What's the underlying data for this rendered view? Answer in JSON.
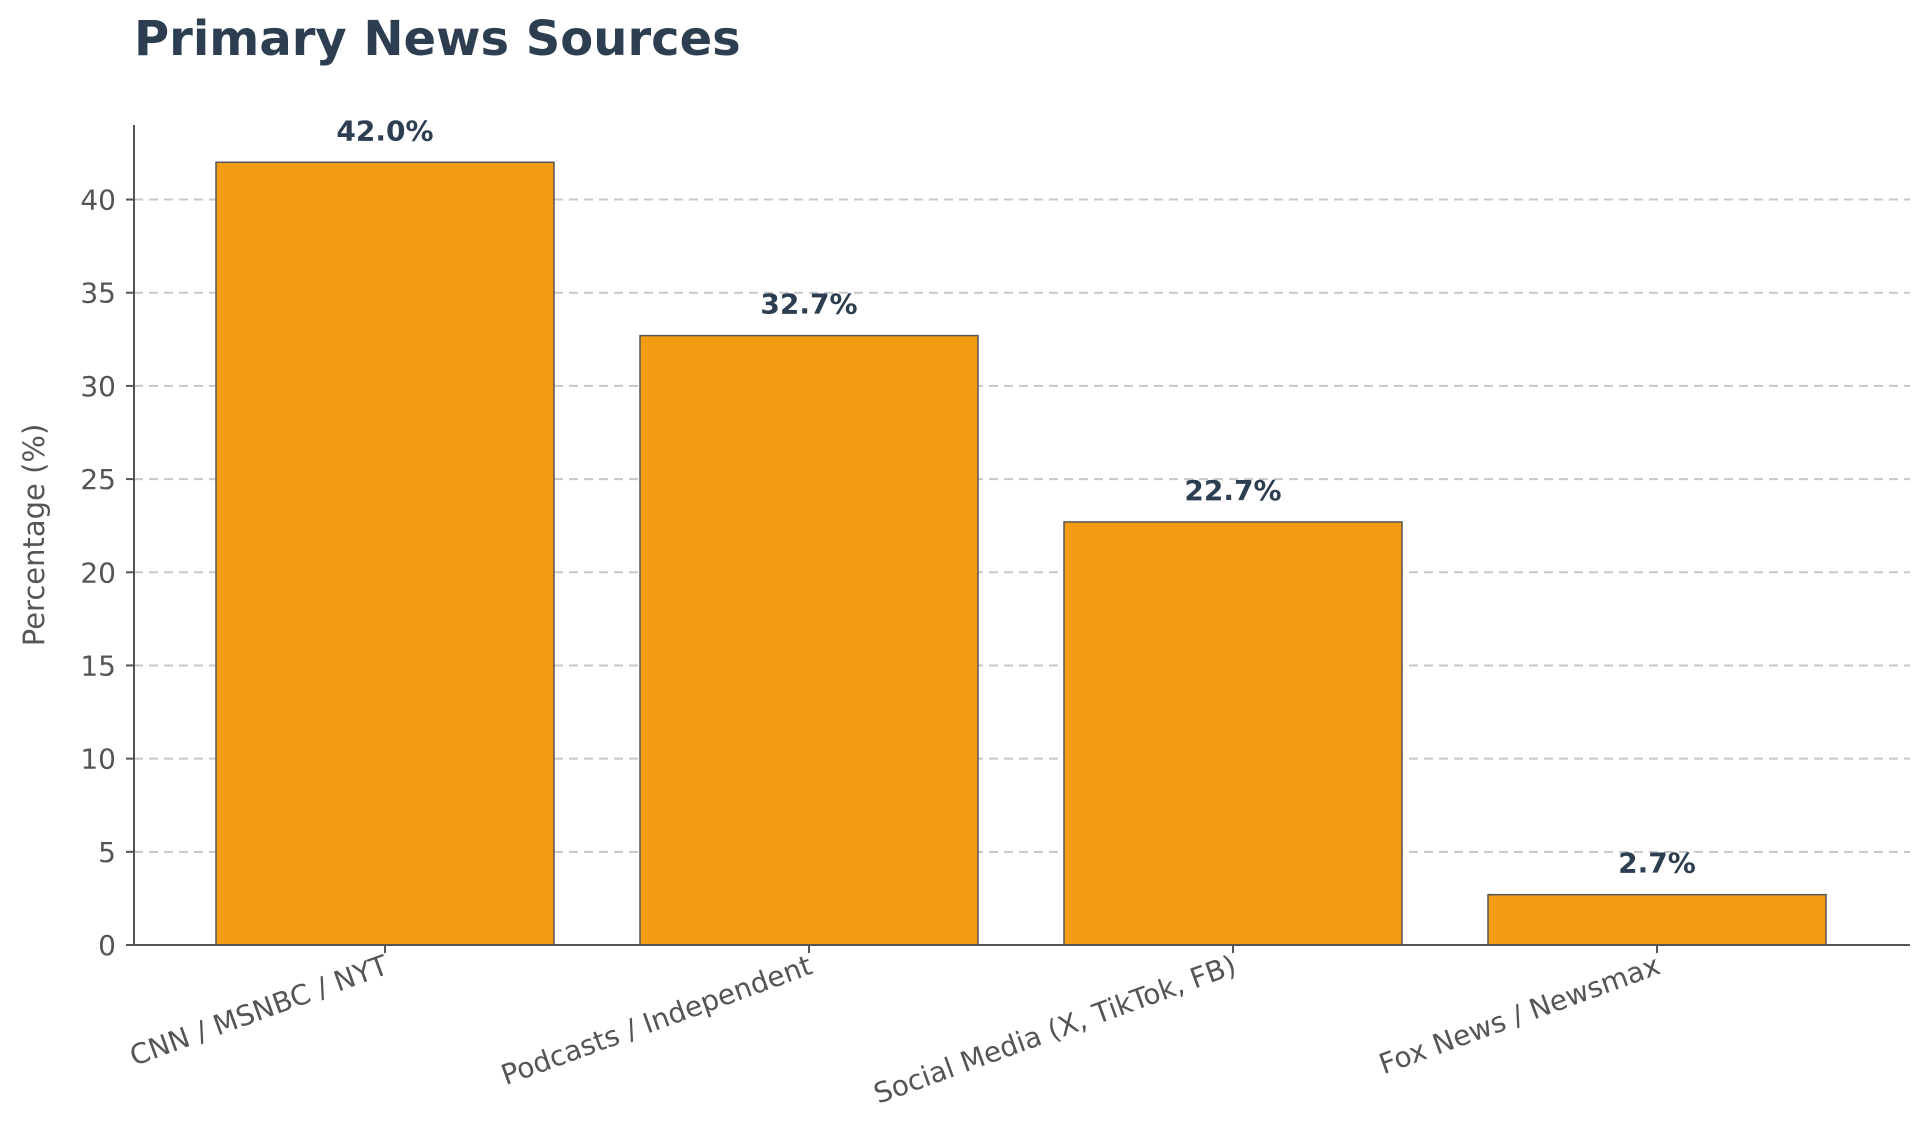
{
  "chart_data": {
    "type": "bar",
    "title": "Primary News Sources",
    "xlabel": "",
    "ylabel": "Percentage (%)",
    "categories": [
      "CNN / MSNBC / NYT",
      "Podcasts / Independent",
      "Social Media (X, TikTok, FB)",
      "Fox News / Newsmax"
    ],
    "values": [
      42.0,
      32.7,
      22.7,
      2.7
    ],
    "data_labels": [
      "42.0%",
      "32.7%",
      "22.7%",
      "2.7%"
    ],
    "ylim": [
      0,
      44
    ],
    "yticks": [
      0,
      5,
      10,
      15,
      20,
      25,
      30,
      35,
      40
    ],
    "grid": true,
    "bar_color": "#f39c12",
    "bar_edge_color": "#555555",
    "text_color": "#2c3e50"
  }
}
